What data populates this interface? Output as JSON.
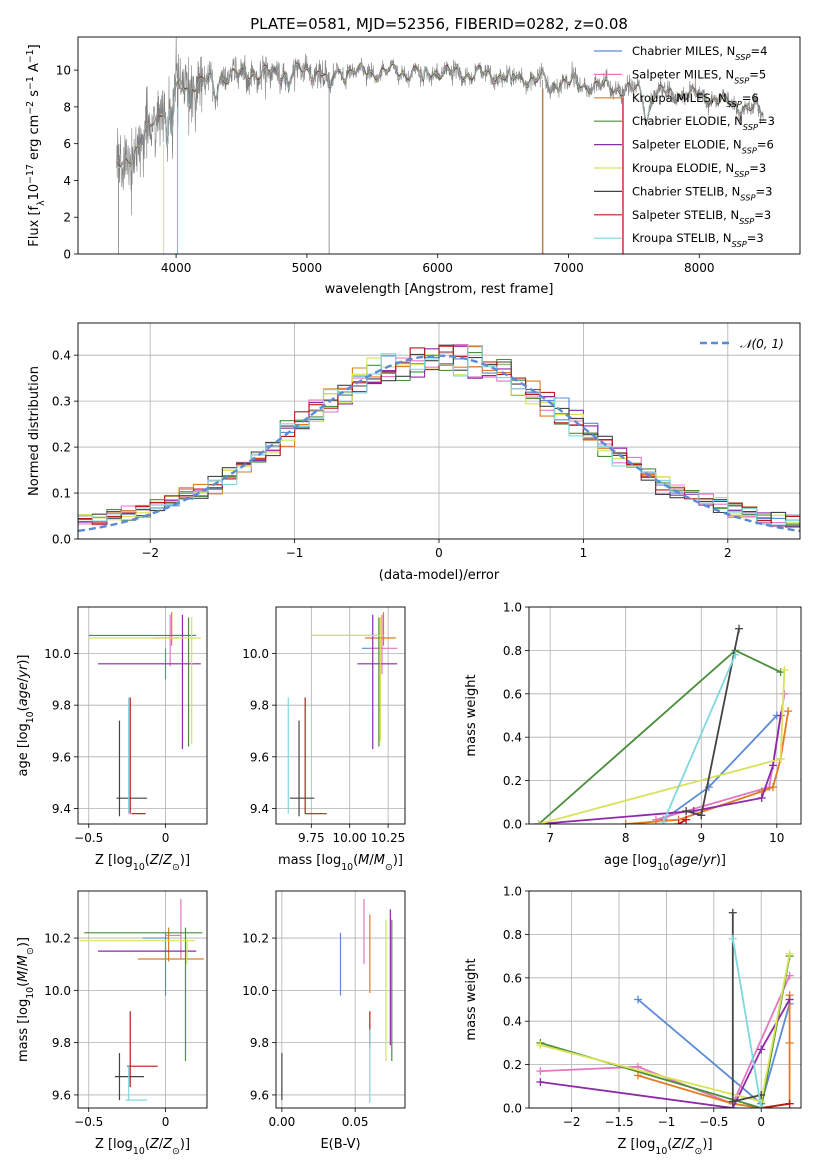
{
  "chart_data": [
    {
      "id": "spectrum",
      "type": "line",
      "title": "PLATE=0581, MJD=52356, FIBERID=0282, z=0.08",
      "xlabel": "wavelength [Angstrom, rest frame]",
      "ylabel": "Flux [f_λ10^-17 erg cm^-2 s^-1 A^-1]",
      "xlim": [
        3250,
        8770
      ],
      "ylim": [
        0,
        11.8
      ],
      "xticks": [
        4000,
        5000,
        6000,
        7000,
        8000
      ],
      "yticks": [
        0,
        2,
        4,
        6,
        8,
        10
      ],
      "grid": false,
      "legend_placement": "upper right",
      "series": [
        {
          "name": "Chabrier MILES, N_SSP=4",
          "color": "#5b8bd6"
        },
        {
          "name": "Salpeter MILES, N_SSP=5",
          "color": "#e377c2"
        },
        {
          "name": "Kroupa MILES, N_SSP=6",
          "color": "#e07c22"
        },
        {
          "name": "Chabrier ELODIE, N_SSP=3",
          "color": "#4a8f3a"
        },
        {
          "name": "Salpeter ELODIE, N_SSP=6",
          "color": "#8e2aa8"
        },
        {
          "name": "Kroupa ELODIE, N_SSP=3",
          "color": "#d8e35a"
        },
        {
          "name": "Chabrier STELIB, N_SSP=3",
          "color": "#444444"
        },
        {
          "name": "Salpeter STELIB, N_SSP=3",
          "color": "#b81c1c"
        },
        {
          "name": "Kroupa STELIB, N_SSP=3",
          "color": "#7fd7e0"
        }
      ],
      "data_color": "#808080",
      "continuum": {
        "x": [
          3550,
          3700,
          3900,
          4000,
          4200,
          4500,
          5000,
          5500,
          6000,
          6500,
          7000,
          7500,
          8000,
          8500
        ],
        "y": [
          4.6,
          5.7,
          8.0,
          9.0,
          9.4,
          9.8,
          9.9,
          9.9,
          9.9,
          9.7,
          9.3,
          8.9,
          8.6,
          7.7
        ]
      }
    },
    {
      "id": "residuals",
      "type": "histogram",
      "xlabel": "(data-model)/error",
      "ylabel": "Normed distribution",
      "xlim": [
        -2.5,
        2.5
      ],
      "ylim": [
        0,
        0.47
      ],
      "xticks": [
        -2,
        -1,
        0,
        1,
        2
      ],
      "yticks": [
        0.0,
        0.1,
        0.2,
        0.3,
        0.4
      ],
      "grid": true,
      "legend_placement": "upper right",
      "legend_label": "𝒩(0, 1)",
      "bin_width": 0.1
    },
    {
      "id": "age-vs-Z",
      "type": "errorbar",
      "xlabel": "Z [log10(Z/Z⊙)]",
      "ylabel": "age [log10(age/yr)]",
      "xlim": [
        -0.57,
        0.27
      ],
      "ylim": [
        9.34,
        10.18
      ],
      "xticks": [
        -0.5,
        0.0
      ],
      "yticks": [
        9.4,
        9.6,
        9.8,
        10.0
      ],
      "grid": true,
      "points": [
        {
          "color": "#5b8bd6",
          "x": 0.0,
          "xerr": [
            0.0,
            0.0
          ],
          "y": 10.0,
          "yerr": [
            0.1,
            0.02
          ]
        },
        {
          "color": "#e377c2",
          "x": 0.03,
          "xerr": [
            0.0,
            0.0
          ],
          "y": 10.05,
          "yerr": [
            0.1,
            0.1
          ]
        },
        {
          "color": "#e07c22",
          "x": 0.04,
          "xerr": [
            0.12,
            0.05
          ],
          "y": 10.06,
          "yerr": [
            0.03,
            0.1
          ]
        },
        {
          "color": "#4a8f3a",
          "x": 0.15,
          "xerr": [
            0.65,
            0.05
          ],
          "y": 10.07,
          "yerr": [
            0.43,
            0.07
          ]
        },
        {
          "color": "#8e2aa8",
          "x": 0.11,
          "xerr": [
            0.55,
            0.12
          ],
          "y": 9.96,
          "yerr": [
            0.33,
            0.19
          ]
        },
        {
          "color": "#d8e35a",
          "x": 0.17,
          "xerr": [
            0.67,
            0.06
          ],
          "y": 10.06,
          "yerr": [
            0.41,
            0.08
          ]
        },
        {
          "color": "#444444",
          "x": -0.3,
          "xerr": [
            0.02,
            0.18
          ],
          "y": 9.44,
          "yerr": [
            0.07,
            0.3
          ]
        },
        {
          "color": "#b81c1c",
          "x": -0.23,
          "xerr": [
            0.0,
            0.1
          ],
          "y": 9.38,
          "yerr": [
            0.0,
            0.45
          ]
        },
        {
          "color": "#7fd7e0",
          "x": -0.24,
          "xerr": [
            0.0,
            0.02
          ],
          "y": 9.38,
          "yerr": [
            0.0,
            0.45
          ]
        }
      ]
    },
    {
      "id": "age-vs-mass",
      "type": "errorbar",
      "xlabel": "mass [log10(M/M⊙)]",
      "xlim": [
        9.52,
        10.36
      ],
      "ylim": [
        9.34,
        10.18
      ],
      "xticks": [
        9.75,
        10.0,
        10.25
      ],
      "xtick_labels": [
        "9.75",
        "10.00",
        "10.25"
      ],
      "yticks": [
        9.4,
        9.6,
        9.8,
        10.0
      ],
      "grid": true,
      "points": [
        {
          "color": "#5b8bd6",
          "x": 10.2,
          "xerr": [
            0.12,
            0.02
          ],
          "y": 10.02,
          "yerr": [
            0.0,
            0.0
          ]
        },
        {
          "color": "#e377c2",
          "x": 10.21,
          "xerr": [
            0.08,
            0.1
          ],
          "y": 10.02,
          "yerr": [
            0.1,
            0.13
          ]
        },
        {
          "color": "#e07c22",
          "x": 10.22,
          "xerr": [
            0.12,
            0.08
          ],
          "y": 10.06,
          "yerr": [
            0.03,
            0.1
          ]
        },
        {
          "color": "#4a8f3a",
          "x": 10.19,
          "xerr": [
            0.44,
            0.02
          ],
          "y": 10.07,
          "yerr": [
            0.43,
            0.07
          ]
        },
        {
          "color": "#8e2aa8",
          "x": 10.15,
          "xerr": [
            0.1,
            0.16
          ],
          "y": 9.96,
          "yerr": [
            0.33,
            0.19
          ]
        },
        {
          "color": "#d8e35a",
          "x": 10.2,
          "xerr": [
            0.45,
            0.02
          ],
          "y": 10.07,
          "yerr": [
            0.41,
            0.07
          ]
        },
        {
          "color": "#444444",
          "x": 9.67,
          "xerr": [
            0.06,
            0.1
          ],
          "y": 9.44,
          "yerr": [
            0.07,
            0.3
          ]
        },
        {
          "color": "#b81c1c",
          "x": 9.71,
          "xerr": [
            0.0,
            0.14
          ],
          "y": 9.38,
          "yerr": [
            0.0,
            0.45
          ]
        },
        {
          "color": "#7fd7e0",
          "x": 9.6,
          "xerr": [
            0.0,
            0.0
          ],
          "y": 9.38,
          "yerr": [
            0.0,
            0.45
          ]
        }
      ]
    },
    {
      "id": "massweight-vs-age",
      "type": "line",
      "xlabel": "age [log10(age/yr)]",
      "ylabel": "mass weight",
      "xlim": [
        6.72,
        10.32
      ],
      "ylim": [
        0,
        1.0
      ],
      "xticks": [
        7,
        8,
        9,
        10
      ],
      "yticks": [
        0.0,
        0.2,
        0.4,
        0.6,
        0.8,
        1.0
      ],
      "grid": true,
      "series": [
        {
          "color": "#5b8bd6",
          "x": [
            8.5,
            9.1,
            10.0
          ],
          "y": [
            0.02,
            0.17,
            0.5
          ]
        },
        {
          "color": "#e377c2",
          "x": [
            8.4,
            9.9,
            10.1
          ],
          "y": [
            0.02,
            0.17,
            0.6
          ]
        },
        {
          "color": "#e07c22",
          "x": [
            8.0,
            8.7,
            9.8,
            9.95,
            10.05,
            10.15
          ],
          "y": [
            0.0,
            0.02,
            0.15,
            0.17,
            0.3,
            0.52
          ]
        },
        {
          "color": "#4a8f3a",
          "x": [
            6.85,
            9.45,
            10.05
          ],
          "y": [
            0.0,
            0.8,
            0.7
          ]
        },
        {
          "color": "#8e2aa8",
          "x": [
            6.85,
            8.9,
            9.8,
            9.95,
            10.05
          ],
          "y": [
            0.0,
            0.06,
            0.12,
            0.27,
            0.5
          ]
        },
        {
          "color": "#d8e35a",
          "x": [
            6.85,
            10.05,
            10.1
          ],
          "y": [
            0.0,
            0.3,
            0.71
          ]
        },
        {
          "color": "#444444",
          "x": [
            8.8,
            9.0,
            9.5
          ],
          "y": [
            0.06,
            0.04,
            0.9
          ]
        },
        {
          "color": "#b81c1c",
          "x": [
            8.7,
            8.8
          ],
          "y": [
            0.0,
            0.02
          ]
        },
        {
          "color": "#7fd7e0",
          "x": [
            8.5,
            9.45
          ],
          "y": [
            0.01,
            0.78
          ]
        }
      ]
    },
    {
      "id": "mass-vs-Z",
      "type": "errorbar",
      "xlabel": "Z [log10(Z/Z⊙)]",
      "ylabel": "mass [log10(M/M⊙)]",
      "xlim": [
        -0.57,
        0.27
      ],
      "ylim": [
        9.55,
        10.38
      ],
      "xticks": [
        -0.5,
        0.0
      ],
      "yticks": [
        9.6,
        9.8,
        10.0,
        10.2
      ],
      "grid": true,
      "points": [
        {
          "color": "#5b8bd6",
          "x": 0.0,
          "xerr": [
            0.15,
            0.02
          ],
          "y": 10.2,
          "yerr": [
            0.22,
            0.02
          ]
        },
        {
          "color": "#e377c2",
          "x": 0.1,
          "xerr": [
            0.1,
            0.0
          ],
          "y": 10.21,
          "yerr": [
            0.09,
            0.14
          ]
        },
        {
          "color": "#e07c22",
          "x": 0.02,
          "xerr": [
            0.2,
            0.23
          ],
          "y": 10.12,
          "yerr": [
            0.01,
            0.12
          ]
        },
        {
          "color": "#4a8f3a",
          "x": 0.13,
          "xerr": [
            0.66,
            0.11
          ],
          "y": 10.22,
          "yerr": [
            0.49,
            0.02
          ]
        },
        {
          "color": "#8e2aa8",
          "x": 0.08,
          "xerr": [
            0.52,
            0.12
          ],
          "y": 10.15,
          "yerr": [
            0.0,
            0.0
          ]
        },
        {
          "color": "#d8e35a",
          "x": 0.14,
          "xerr": [
            0.7,
            0.05
          ],
          "y": 10.19,
          "yerr": [
            0.09,
            0.0
          ]
        },
        {
          "color": "#444444",
          "x": -0.3,
          "xerr": [
            0.03,
            0.16
          ],
          "y": 9.67,
          "yerr": [
            0.09,
            0.09
          ]
        },
        {
          "color": "#b81c1c",
          "x": -0.23,
          "xerr": [
            0.02,
            0.18
          ],
          "y": 9.71,
          "yerr": [
            0.08,
            0.21
          ]
        },
        {
          "color": "#7fd7e0",
          "x": -0.24,
          "xerr": [
            0.02,
            0.12
          ],
          "y": 9.58,
          "yerr": [
            0.0,
            0.13
          ]
        }
      ]
    },
    {
      "id": "mass-vs-ebv",
      "type": "errorbar",
      "xlabel": "E(B-V)",
      "xlim": [
        -0.004,
        0.084
      ],
      "ylim": [
        9.55,
        10.38
      ],
      "xticks": [
        0.0,
        0.05
      ],
      "xtick_labels": [
        "0.00",
        "0.05"
      ],
      "yticks": [
        9.6,
        9.8,
        10.0,
        10.2
      ],
      "grid": true,
      "points": [
        {
          "color": "#5b8bd6",
          "x": 0.04,
          "y": 10.1,
          "yerr": [
            0.12,
            0.12
          ]
        },
        {
          "color": "#e377c2",
          "x": 0.056,
          "y": 10.22,
          "yerr": [
            0.12,
            0.13
          ]
        },
        {
          "color": "#e07c22",
          "x": 0.06,
          "y": 10.14,
          "yerr": [
            0.15,
            0.15
          ]
        },
        {
          "color": "#4a8f3a",
          "x": 0.075,
          "y": 10.0,
          "yerr": [
            0.27,
            0.27
          ]
        },
        {
          "color": "#8e2aa8",
          "x": 0.074,
          "y": 10.05,
          "yerr": [
            0.26,
            0.26
          ]
        },
        {
          "color": "#d8e35a",
          "x": 0.071,
          "y": 10.0,
          "yerr": [
            0.27,
            0.27
          ]
        },
        {
          "color": "#444444",
          "x": 0.0,
          "y": 9.67,
          "yerr": [
            0.09,
            0.09
          ]
        },
        {
          "color": "#b81c1c",
          "x": 0.06,
          "y": 9.85,
          "yerr": [
            0.07,
            0.07
          ]
        },
        {
          "color": "#7fd7e0",
          "x": 0.06,
          "y": 9.71,
          "yerr": [
            0.14,
            0.14
          ]
        }
      ]
    },
    {
      "id": "massweight-vs-Z",
      "type": "line",
      "xlabel": "Z [log10(Z/Z⊙)]",
      "ylabel": "mass weight",
      "xlim": [
        -2.45,
        0.42
      ],
      "ylim": [
        0,
        1.0
      ],
      "xticks": [
        -2.0,
        -1.5,
        -1.0,
        -0.5,
        0.0
      ],
      "yticks": [
        0.0,
        0.2,
        0.4,
        0.6,
        0.8,
        1.0
      ],
      "grid": true,
      "series": [
        {
          "color": "#5b8bd6",
          "x": [
            -1.3,
            0.0,
            0.3
          ],
          "y": [
            0.5,
            0.02,
            0.48
          ]
        },
        {
          "color": "#e377c2",
          "x": [
            -2.33,
            -1.3,
            -0.3,
            0.3
          ],
          "y": [
            0.17,
            0.19,
            0.02,
            0.61
          ]
        },
        {
          "color": "#e07c22",
          "x": [
            -1.3,
            -0.3,
            0.0,
            0.3,
            0.3,
            0.3
          ],
          "y": [
            0.15,
            0.02,
            0.0,
            0.02,
            0.3,
            0.52
          ]
        },
        {
          "color": "#4a8f3a",
          "x": [
            -2.33,
            0.0,
            0.3
          ],
          "y": [
            0.3,
            0.0,
            0.7
          ]
        },
        {
          "color": "#8e2aa8",
          "x": [
            -2.33,
            -0.3,
            0.0,
            0.3
          ],
          "y": [
            0.12,
            0.0,
            0.27,
            0.5
          ]
        },
        {
          "color": "#d8e35a",
          "x": [
            -2.33,
            0.0,
            0.3
          ],
          "y": [
            0.29,
            0.03,
            0.71
          ]
        },
        {
          "color": "#444444",
          "x": [
            -0.3,
            -0.3,
            0.0
          ],
          "y": [
            0.9,
            0.03,
            0.06
          ]
        },
        {
          "color": "#b81c1c",
          "x": [
            0.0,
            0.3
          ],
          "y": [
            0.0,
            0.02
          ]
        },
        {
          "color": "#7fd7e0",
          "x": [
            -0.3,
            0.0
          ],
          "y": [
            0.78,
            0.0
          ]
        }
      ]
    }
  ]
}
